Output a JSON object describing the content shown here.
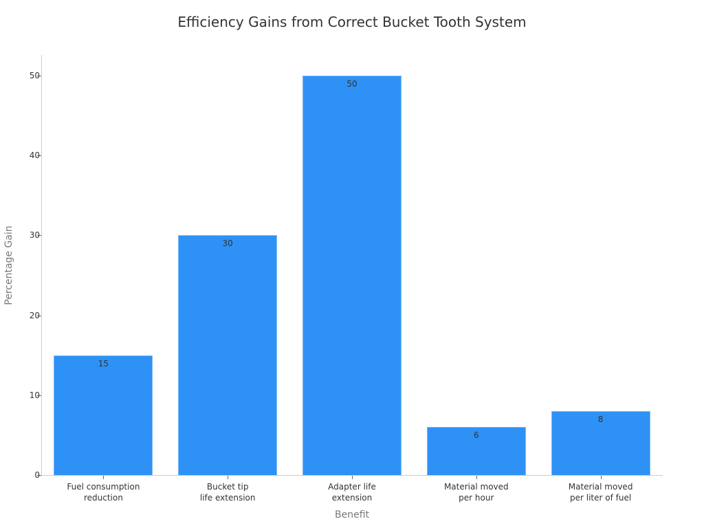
{
  "chart_data": {
    "type": "bar",
    "title": "Efficiency Gains from Correct Bucket Tooth System",
    "xlabel": "Benefit",
    "ylabel": "Percentage Gain",
    "categories": [
      "Fuel consumption\nreduction",
      "Bucket tip\nlife extension",
      "Adapter life\nextension",
      "Material moved\nper hour",
      "Material moved\nper liter of fuel"
    ],
    "values": [
      15,
      30,
      50,
      6,
      8
    ],
    "data_labels": [
      "15",
      "30",
      "50",
      "6",
      "8"
    ],
    "ylim": [
      0,
      52.5
    ],
    "yticks": [
      0,
      10,
      20,
      30,
      40,
      50
    ],
    "ytick_labels": [
      "0",
      "10",
      "20",
      "30",
      "40",
      "50"
    ],
    "grid": false,
    "legend": null,
    "bar_color": "#2e91f6"
  }
}
